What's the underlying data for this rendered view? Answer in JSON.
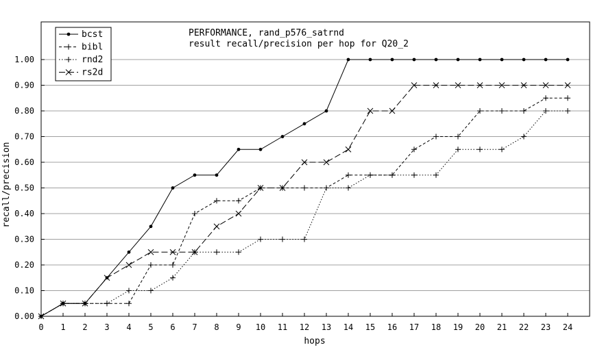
{
  "chart_data": {
    "type": "line",
    "title": "PERFORMANCE, rand_p576_satrnd",
    "subtitle": "result recall/precision per hop for Q20_2",
    "xlabel": "hops",
    "ylabel": "recall/precision",
    "xlim": [
      0,
      24
    ],
    "ylim": [
      0,
      1
    ],
    "grid": "horizontal",
    "legend_position": "top-left",
    "x": [
      0,
      1,
      2,
      3,
      4,
      5,
      6,
      7,
      8,
      9,
      10,
      11,
      12,
      13,
      14,
      15,
      16,
      17,
      18,
      19,
      20,
      21,
      22,
      23,
      24
    ],
    "x_ticks": [
      "0",
      "1",
      "2",
      "3",
      "4",
      "5",
      "6",
      "7",
      "8",
      "9",
      "10",
      "11",
      "12",
      "13",
      "14",
      "15",
      "16",
      "17",
      "18",
      "19",
      "20",
      "21",
      "22",
      "23",
      "24"
    ],
    "y_ticks": [
      "0.00",
      "0.10",
      "0.20",
      "0.30",
      "0.40",
      "0.50",
      "0.60",
      "0.70",
      "0.80",
      "0.90",
      "1.00"
    ],
    "series": [
      {
        "name": "bcst",
        "marker": "dot",
        "dash": "solid",
        "values": [
          0,
          0.05,
          0.05,
          0.15,
          0.25,
          0.35,
          0.5,
          0.55,
          0.55,
          0.65,
          0.65,
          0.7,
          0.75,
          0.8,
          1.0,
          1.0,
          1.0,
          1.0,
          1.0,
          1.0,
          1.0,
          1.0,
          1.0,
          1.0,
          1.0
        ]
      },
      {
        "name": "bibl",
        "marker": "plus",
        "dash": "dashed",
        "values": [
          0,
          0.05,
          0.05,
          0.05,
          0.05,
          0.2,
          0.2,
          0.4,
          0.45,
          0.45,
          0.5,
          0.5,
          0.5,
          0.5,
          0.55,
          0.55,
          0.55,
          0.65,
          0.7,
          0.7,
          0.8,
          0.8,
          0.8,
          0.85,
          0.85
        ]
      },
      {
        "name": "rnd2",
        "marker": "plus",
        "dash": "dotted",
        "values": [
          0,
          0.05,
          0.05,
          0.05,
          0.1,
          0.1,
          0.15,
          0.25,
          0.25,
          0.25,
          0.3,
          0.3,
          0.3,
          0.5,
          0.5,
          0.55,
          0.55,
          0.55,
          0.55,
          0.65,
          0.65,
          0.65,
          0.7,
          0.8,
          0.8
        ]
      },
      {
        "name": "rs2d",
        "marker": "cross",
        "dash": "longdash",
        "values": [
          0,
          0.05,
          0.05,
          0.15,
          0.2,
          0.25,
          0.25,
          0.25,
          0.35,
          0.4,
          0.5,
          0.5,
          0.6,
          0.6,
          0.65,
          0.8,
          0.8,
          0.9,
          0.9,
          0.9,
          0.9,
          0.9,
          0.9,
          0.9,
          0.9
        ]
      }
    ]
  }
}
